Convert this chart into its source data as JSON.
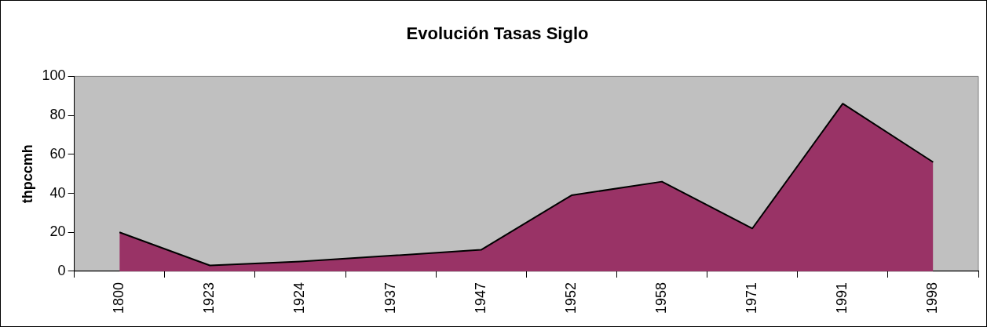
{
  "chart_data": {
    "type": "area",
    "title": "Evolución Tasas Siglo",
    "ylabel": "thpccmh",
    "categories": [
      "1800",
      "1923",
      "1924",
      "1937",
      "1947",
      "1952",
      "1958",
      "1971",
      "1991",
      "1998"
    ],
    "series": [
      {
        "color": "#993366",
        "values": [
          20,
          3,
          5,
          8,
          11,
          39,
          46,
          22,
          86,
          56
        ]
      }
    ],
    "ylim": [
      0,
      100
    ],
    "yticks": [
      0,
      20,
      40,
      60,
      80,
      100
    ],
    "grid": false,
    "legend": false
  }
}
